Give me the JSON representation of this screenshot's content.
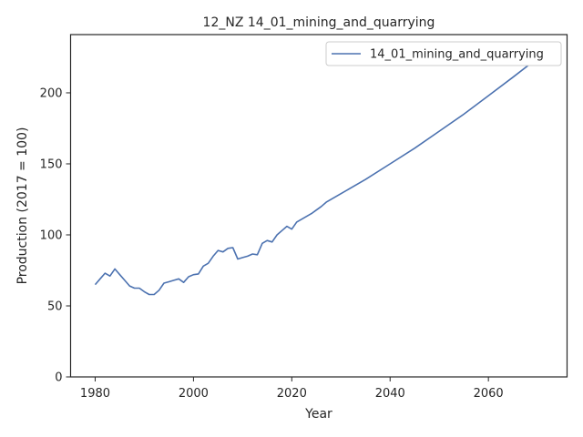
{
  "chart_data": {
    "type": "line",
    "title": "12_NZ 14_01_mining_and_quarrying",
    "xlabel": "Year",
    "ylabel": "Production (2017 = 100)",
    "xlim": [
      1975,
      2076
    ],
    "ylim": [
      0,
      241
    ],
    "xticks": [
      1980,
      2000,
      2020,
      2040,
      2060
    ],
    "yticks": [
      0,
      50,
      100,
      150,
      200
    ],
    "grid": false,
    "legend_position": "top-right",
    "series": [
      {
        "name": "14_01_mining_and_quarrying",
        "color": "#4c72b0",
        "x": [
          1980,
          1981,
          1982,
          1983,
          1984,
          1985,
          1986,
          1987,
          1988,
          1989,
          1990,
          1991,
          1992,
          1993,
          1994,
          1995,
          1996,
          1997,
          1998,
          1999,
          2000,
          2001,
          2002,
          2003,
          2004,
          2005,
          2006,
          2007,
          2008,
          2009,
          2010,
          2011,
          2012,
          2013,
          2014,
          2015,
          2016,
          2017,
          2018,
          2019,
          2020,
          2021,
          2022,
          2023,
          2024,
          2025,
          2026,
          2027,
          2030,
          2035,
          2040,
          2045,
          2050,
          2055,
          2060,
          2065,
          2071
        ],
        "y": [
          65,
          69,
          73,
          71,
          76,
          72,
          68,
          64,
          62.5,
          62.5,
          60,
          58,
          58,
          61,
          66,
          67,
          68,
          69,
          66.5,
          70.5,
          72,
          72.5,
          78,
          80,
          85,
          89,
          88,
          90.5,
          91,
          83,
          84,
          85,
          86.5,
          86,
          94,
          96,
          95,
          100,
          103,
          106,
          104,
          109,
          111,
          113,
          115,
          117.5,
          120,
          123,
          129,
          139,
          150,
          161,
          173,
          185,
          198,
          211,
          227
        ]
      }
    ]
  }
}
